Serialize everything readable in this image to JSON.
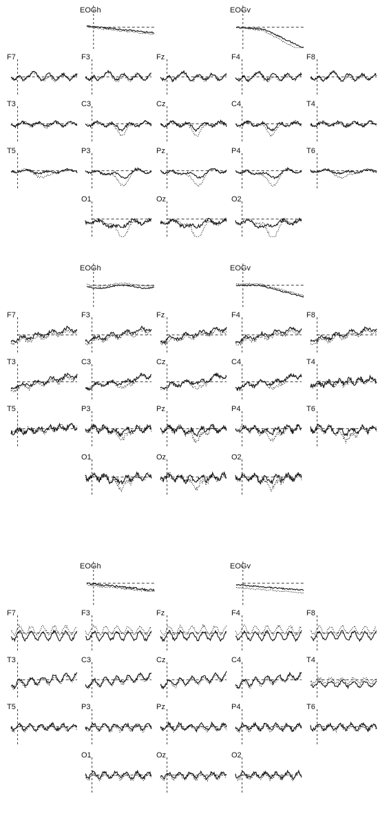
{
  "chart_data": [
    {
      "type": "line",
      "title": "",
      "panel": 1,
      "channels": [
        {
          "name": "EOGh",
          "shape": "eogh1"
        },
        {
          "name": "EOGv",
          "shape": "eogv1"
        },
        {
          "name": "F7",
          "shape": "front"
        },
        {
          "name": "F3",
          "shape": "front"
        },
        {
          "name": "Fz",
          "shape": "front"
        },
        {
          "name": "F4",
          "shape": "front"
        },
        {
          "name": "F8",
          "shape": "front"
        },
        {
          "name": "T3",
          "shape": "central"
        },
        {
          "name": "C3",
          "shape": "central_dip"
        },
        {
          "name": "Cz",
          "shape": "central_dip"
        },
        {
          "name": "C4",
          "shape": "central_dip"
        },
        {
          "name": "T4",
          "shape": "central"
        },
        {
          "name": "T5",
          "shape": "parietal_side"
        },
        {
          "name": "P3",
          "shape": "parietal"
        },
        {
          "name": "Pz",
          "shape": "parietal"
        },
        {
          "name": "P4",
          "shape": "parietal"
        },
        {
          "name": "T6",
          "shape": "parietal_side"
        },
        {
          "name": "O1",
          "shape": "occipital"
        },
        {
          "name": "Oz",
          "shape": "occipital"
        },
        {
          "name": "O2",
          "shape": "occipital"
        }
      ]
    },
    {
      "type": "line",
      "title": "",
      "panel": 2,
      "channels": [
        {
          "name": "EOGh",
          "shape": "eogh2"
        },
        {
          "name": "EOGv",
          "shape": "eogv2"
        },
        {
          "name": "F7",
          "shape": "rising"
        },
        {
          "name": "F3",
          "shape": "rising"
        },
        {
          "name": "Fz",
          "shape": "rising"
        },
        {
          "name": "F4",
          "shape": "rising"
        },
        {
          "name": "F8",
          "shape": "rising"
        },
        {
          "name": "T3",
          "shape": "rising"
        },
        {
          "name": "C3",
          "shape": "rising_dip"
        },
        {
          "name": "Cz",
          "shape": "rising_dip"
        },
        {
          "name": "C4",
          "shape": "rising_dip"
        },
        {
          "name": "T4",
          "shape": "noisy"
        },
        {
          "name": "T5",
          "shape": "noisy"
        },
        {
          "name": "P3",
          "shape": "noisy_dip"
        },
        {
          "name": "Pz",
          "shape": "noisy_dip"
        },
        {
          "name": "P4",
          "shape": "noisy_dip"
        },
        {
          "name": "T6",
          "shape": "noisy_dip"
        },
        {
          "name": "O1",
          "shape": "noisy_dip"
        },
        {
          "name": "Oz",
          "shape": "noisy_dip"
        },
        {
          "name": "O2",
          "shape": "noisy_dip"
        }
      ]
    },
    {
      "type": "line",
      "title": "",
      "panel": 3,
      "channels": [
        {
          "name": "EOGh",
          "shape": "eogh3"
        },
        {
          "name": "EOGv",
          "shape": "eogv3"
        },
        {
          "name": "F7",
          "shape": "osc"
        },
        {
          "name": "F3",
          "shape": "osc"
        },
        {
          "name": "Fz",
          "shape": "osc"
        },
        {
          "name": "F4",
          "shape": "osc"
        },
        {
          "name": "F8",
          "shape": "osc"
        },
        {
          "name": "T3",
          "shape": "osc_rise"
        },
        {
          "name": "C3",
          "shape": "osc_rise"
        },
        {
          "name": "Cz",
          "shape": "osc_rise"
        },
        {
          "name": "C4",
          "shape": "osc_rise"
        },
        {
          "name": "T4",
          "shape": "osc_low"
        },
        {
          "name": "T5",
          "shape": "osc_flat"
        },
        {
          "name": "P3",
          "shape": "osc_flat"
        },
        {
          "name": "Pz",
          "shape": "osc_flat"
        },
        {
          "name": "P4",
          "shape": "osc_flat"
        },
        {
          "name": "T6",
          "shape": "osc_flat"
        },
        {
          "name": "O1",
          "shape": "osc_flat"
        },
        {
          "name": "Oz",
          "shape": "osc_flat"
        },
        {
          "name": "O2",
          "shape": "osc_flat"
        }
      ]
    }
  ]
}
